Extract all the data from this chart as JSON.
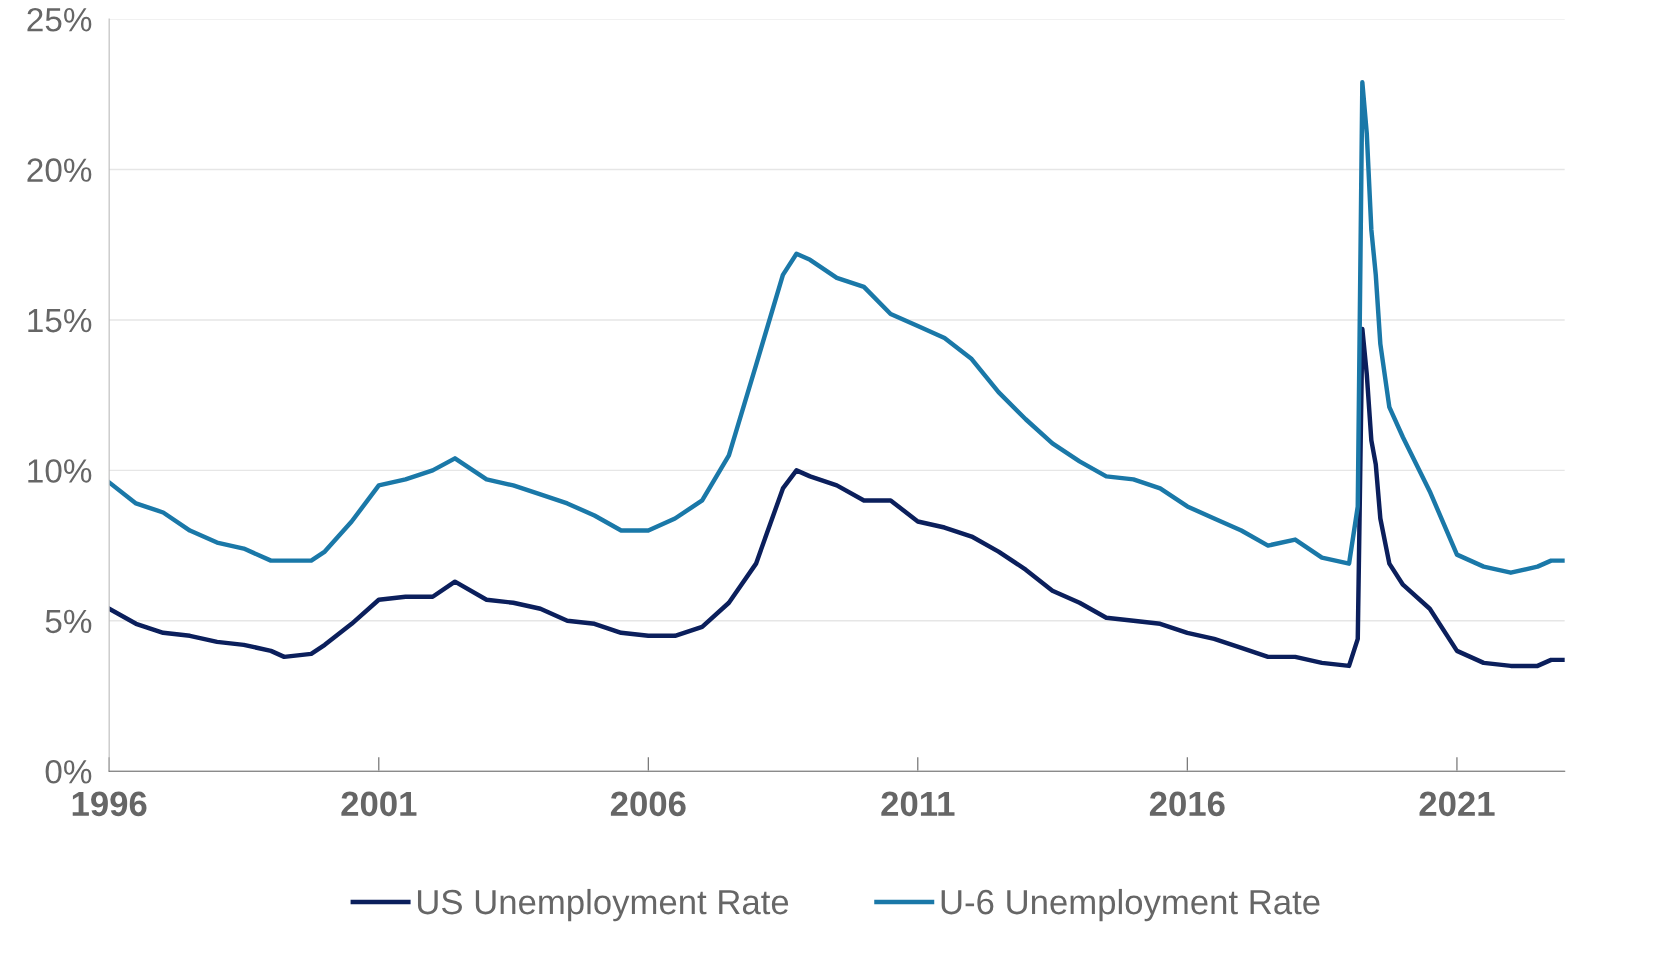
{
  "chart_data": {
    "type": "line",
    "x": [
      "1996-01",
      "1996-07",
      "1997-01",
      "1997-07",
      "1998-01",
      "1998-07",
      "1999-01",
      "1999-04",
      "1999-10",
      "2000-01",
      "2000-07",
      "2001-01",
      "2001-07",
      "2002-01",
      "2002-06",
      "2003-01",
      "2003-07",
      "2004-01",
      "2004-07",
      "2005-01",
      "2005-07",
      "2006-01",
      "2006-07",
      "2007-01",
      "2007-07",
      "2008-01",
      "2008-07",
      "2008-10",
      "2009-01",
      "2009-07",
      "2010-01",
      "2010-07",
      "2011-01",
      "2011-07",
      "2012-01",
      "2012-07",
      "2013-01",
      "2013-07",
      "2014-01",
      "2014-07",
      "2015-01",
      "2015-07",
      "2016-01",
      "2016-07",
      "2017-01",
      "2017-07",
      "2018-01",
      "2018-07",
      "2019-01",
      "2019-03",
      "2019-04",
      "2019-05",
      "2019-06",
      "2019-07",
      "2019-08",
      "2019-10",
      "2020-01",
      "2020-07",
      "2021-01",
      "2021-07",
      "2022-01",
      "2022-07",
      "2022-10",
      "2023-01"
    ],
    "series": [
      {
        "name": "US Unemployment Rate",
        "color": "#0b1f5c",
        "values": [
          5.4,
          4.9,
          4.6,
          4.5,
          4.3,
          4.2,
          4.0,
          3.8,
          3.9,
          4.2,
          4.9,
          5.7,
          5.8,
          5.8,
          6.3,
          5.7,
          5.6,
          5.4,
          5.0,
          4.9,
          4.6,
          4.5,
          4.5,
          4.8,
          5.6,
          6.9,
          9.4,
          10.0,
          9.8,
          9.5,
          9.0,
          9.0,
          8.3,
          8.1,
          7.8,
          7.3,
          6.7,
          6.0,
          5.6,
          5.1,
          5.0,
          4.9,
          4.6,
          4.4,
          4.1,
          3.8,
          3.8,
          3.6,
          3.5,
          4.4,
          14.7,
          13.2,
          11.0,
          10.2,
          8.4,
          6.9,
          6.2,
          5.4,
          4.0,
          3.6,
          3.5,
          3.5,
          3.7,
          3.7
        ]
      },
      {
        "name": "U-6 Unemployment Rate",
        "color": "#1a78a8",
        "values": [
          9.6,
          8.9,
          8.6,
          8.0,
          7.6,
          7.4,
          7.0,
          7.0,
          7.0,
          7.3,
          8.3,
          9.5,
          9.7,
          10.0,
          10.4,
          9.7,
          9.5,
          9.2,
          8.9,
          8.5,
          8.0,
          8.0,
          8.4,
          9.0,
          10.5,
          13.5,
          16.5,
          17.2,
          17.0,
          16.4,
          16.1,
          15.2,
          14.8,
          14.4,
          13.7,
          12.6,
          11.7,
          10.9,
          10.3,
          9.8,
          9.7,
          9.4,
          8.8,
          8.4,
          8.0,
          7.5,
          7.7,
          7.1,
          6.9,
          8.8,
          22.9,
          21.2,
          18.0,
          16.5,
          14.2,
          12.1,
          11.1,
          9.3,
          7.2,
          6.8,
          6.6,
          6.8,
          7.0,
          7.0
        ]
      }
    ],
    "xlim": [
      "1996-01",
      "2023-01"
    ],
    "xticks": [
      "1996",
      "2001",
      "2006",
      "2011",
      "2016",
      "2021"
    ],
    "ylim": [
      0,
      25
    ],
    "yticks": [
      {
        "value": 0,
        "label": "0%"
      },
      {
        "value": 5,
        "label": "5%"
      },
      {
        "value": 10,
        "label": "10%"
      },
      {
        "value": 15,
        "label": "15%"
      },
      {
        "value": 20,
        "label": "20%"
      },
      {
        "value": 25,
        "label": "25%"
      }
    ],
    "grid": "y",
    "legend": "bottom",
    "line_style": "solid",
    "marker": "none"
  }
}
